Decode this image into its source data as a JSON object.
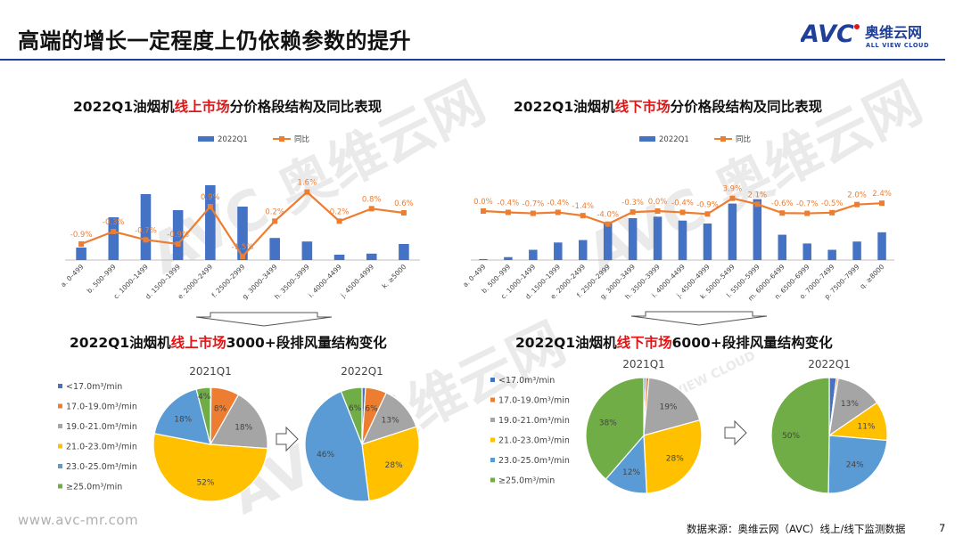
{
  "page": {
    "title": "高端的增长一定程度上仍依赖参数的提升",
    "footer_url": "www.avc-mr.com",
    "footer_source": "数据来源：奥维云网（AVC）线上/线下监测数据",
    "page_number": "7",
    "watermark_main": "AVC 奥维云网",
    "watermark_sub": "ALL VIEW CLOUD"
  },
  "logo": {
    "brand": "AVC",
    "cn": "奥维云网",
    "en": "ALL VIEW CLOUD",
    "color": "#1f3f99",
    "accent": "#e41414"
  },
  "sections": {
    "online_bar_title": {
      "pre": "2022Q1油烟机",
      "hl": "线上市场",
      "post": "分价格段结构及同比表现"
    },
    "offline_bar_title": {
      "pre": "2022Q1油烟机",
      "hl": "线下市场",
      "post": "分价格段结构及同比表现"
    },
    "online_pie_title": {
      "pre": "2022Q1油烟机",
      "hl": "线上市场",
      "post": "3000+段排风量结构变化"
    },
    "offline_pie_title": {
      "pre": "2022Q1油烟机",
      "hl": "线下市场",
      "post": "6000+段排风量结构变化"
    }
  },
  "colors": {
    "bar": "#4472c4",
    "line": "#ed7d31",
    "highlight": "#e41414",
    "pie": [
      "#4472c4",
      "#ed7d31",
      "#a5a5a5",
      "#ffc000",
      "#5b9bd5",
      "#70ad47"
    ]
  },
  "chart_data": [
    {
      "id": "online_bar",
      "type": "bar",
      "legend": [
        "2022Q1",
        "同比"
      ],
      "categories": [
        "a. 0–499",
        "b. 500–999",
        "c. 1000–1499",
        "d. 1500–1999",
        "e. 2000–2499",
        "f. 2500–2999",
        "g. 3000–3499",
        "h. 3500–3999",
        "i. 4000–4499",
        "j. 4500–4999",
        "k. ≥5000"
      ],
      "series": [
        {
          "name": "2022Q1",
          "values": [
            3.5,
            12,
            18.5,
            14,
            21,
            15,
            6.2,
            5.2,
            1.5,
            1.8,
            4.5
          ]
        },
        {
          "name": "同比",
          "values": [
            -0.9,
            -0.3,
            -0.7,
            -0.9,
            0.9,
            -1.5,
            0.2,
            1.6,
            0.2,
            0.8,
            0.6
          ],
          "labels": [
            "-0.9%",
            "-0.3%",
            "-0.7%",
            "-0.9%",
            "0.9%",
            "-1.5%",
            "0.2%",
            "1.6%",
            "0.2%",
            "0.8%",
            "0.6%"
          ]
        }
      ],
      "ylim": [
        0,
        25
      ],
      "y2lim": [
        -2.4,
        2.4
      ]
    },
    {
      "id": "offline_bar",
      "type": "bar",
      "legend": [
        "2022Q1",
        "同比"
      ],
      "categories": [
        "a. 0–499",
        "b. 500–999",
        "c. 1000–1499",
        "d. 1500–1999",
        "e. 2000–2499",
        "f. 2500–2999",
        "g. 3000–3499",
        "h. 3500–3999",
        "i. 4000–4499",
        "j. 4500–4999",
        "k. 5000–5499",
        "l. 5500–5999",
        "m. 6000–6499",
        "n. 6500–6999",
        "o. 7000–7499",
        "p. 7500–7999",
        "q. ≥8000"
      ],
      "series": [
        {
          "name": "2022Q1",
          "values": [
            0.2,
            0.6,
            2.1,
            3.6,
            4.1,
            7.8,
            8.6,
            8.9,
            8.1,
            7.5,
            11.6,
            12.5,
            5.2,
            3.4,
            2.1,
            3.8,
            5.7
          ]
        },
        {
          "name": "同比",
          "values": [
            0.0,
            -0.4,
            -0.7,
            -0.4,
            -1.4,
            -4.0,
            -0.3,
            0.0,
            -0.4,
            -0.9,
            3.9,
            2.1,
            -0.6,
            -0.7,
            -0.5,
            2.0,
            2.4
          ],
          "labels": [
            "0.0%",
            "-0.4%",
            "-0.7%",
            "-0.4%",
            "-1.4%",
            "-4.0%",
            "-0.3%",
            "0.0%",
            "-0.4%",
            "-0.9%",
            "3.9%",
            "2.1%",
            "-0.6%",
            "-0.7%",
            "-0.5%",
            "2.0%",
            "2.4%"
          ]
        }
      ],
      "ylim": [
        0,
        15
      ],
      "y2lim": [
        -6,
        6
      ]
    },
    {
      "id": "online_pie",
      "type": "pie",
      "legend": [
        "<17.0m³/min",
        "17.0-19.0m³/min",
        "19.0-21.0m³/min",
        "21.0-23.0m³/min",
        "23.0-25.0m³/min",
        "≥25.0m³/min"
      ],
      "pies": [
        {
          "title": "2021Q1",
          "values": [
            0.2,
            8,
            18,
            52,
            18,
            4
          ],
          "labels": [
            "",
            "8%",
            "18%",
            "52%",
            "18%",
            "4%"
          ]
        },
        {
          "title": "2022Q1",
          "values": [
            1,
            6,
            13,
            28,
            46,
            6
          ],
          "labels": [
            "",
            "6%",
            "13%",
            "28%",
            "46%",
            "6%"
          ]
        }
      ]
    },
    {
      "id": "offline_pie",
      "type": "pie",
      "legend": [
        "<17.0m³/min",
        "17.0-19.0m³/min",
        "19.0-21.0m³/min",
        "21.0-23.0m³/min",
        "23.0-25.0m³/min",
        "≥25.0m³/min"
      ],
      "pies": [
        {
          "title": "2021Q1",
          "values": [
            0.6,
            0.8,
            19,
            28,
            12,
            38
          ],
          "labels": [
            "",
            "",
            "19%",
            "28%",
            "12%",
            "38%"
          ]
        },
        {
          "title": "2022Q1",
          "values": [
            2,
            0.5,
            13,
            11,
            24,
            50
          ],
          "labels": [
            "",
            "",
            "13%",
            "11%",
            "24%",
            "50%"
          ]
        }
      ]
    }
  ]
}
